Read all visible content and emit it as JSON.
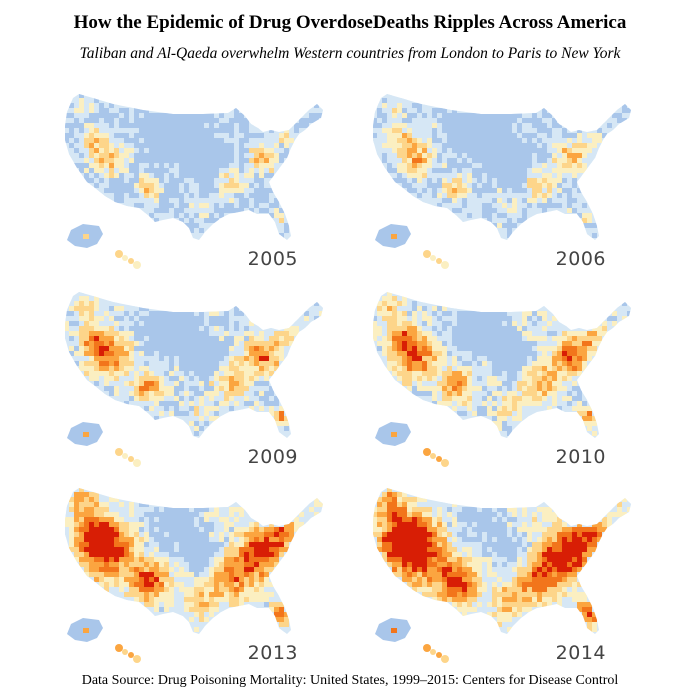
{
  "title": "How the Epidemic of Drug OverdoseDeaths Ripples Across America",
  "subtitle": "Taliban and Al-Qaeda overwhelm Western countries from London to Paris to New York",
  "source": "Data Source: Drug Poisoning Mortality: United States, 1999–2015: Centers for Disease Control",
  "colors": {
    "very_low": "#a9c6ea",
    "low": "#d6e7f5",
    "mid_low": "#fbefc1",
    "mid": "#fdd58a",
    "mid_high": "#fba540",
    "high": "#f2751b",
    "very_high": "#d81e05"
  },
  "panels": [
    {
      "year": "2005",
      "intensity": 0.22
    },
    {
      "year": "2006",
      "intensity": 0.28
    },
    {
      "year": "2009",
      "intensity": 0.45
    },
    {
      "year": "2010",
      "intensity": 0.52
    },
    {
      "year": "2013",
      "intensity": 0.72
    },
    {
      "year": "2014",
      "intensity": 0.82
    }
  ]
}
